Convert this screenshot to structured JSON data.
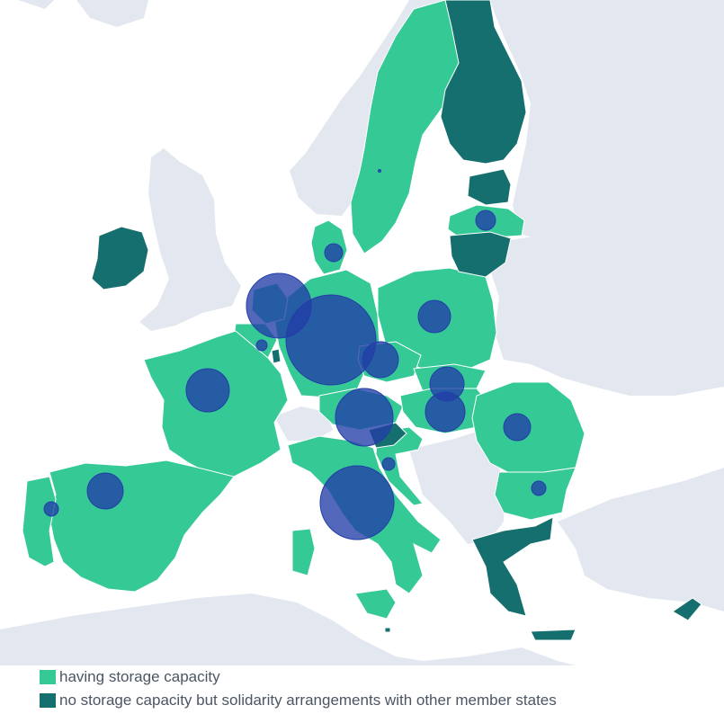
{
  "colors": {
    "sea": "#ffffff",
    "non_eu_land": "#e3e7ef",
    "has_storage": "#35c995",
    "no_storage_solidarity": "#166f6f",
    "bubble": "#233ea8"
  },
  "legend": {
    "items": [
      {
        "label": "having storage capacity",
        "color": "#35c995"
      },
      {
        "label": "no storage capacity but solidarity arrangements with other member states",
        "color": "#166f6f"
      }
    ]
  },
  "map_data": {
    "has_storage": [
      "Sweden",
      "Denmark",
      "Latvia",
      "Germany",
      "Poland",
      "Netherlands",
      "Belgium",
      "France",
      "Spain",
      "Portugal",
      "Italy",
      "Austria",
      "Czechia",
      "Slovakia",
      "Hungary",
      "Croatia",
      "Romania",
      "Bulgaria"
    ],
    "no_storage_solidarity": [
      "Finland",
      "Estonia",
      "Lithuania",
      "Ireland",
      "Luxembourg",
      "Slovenia",
      "Greece",
      "Cyprus",
      "Malta"
    ],
    "storage_bubbles": [
      {
        "country": "Germany",
        "size": "largest"
      },
      {
        "country": "Italy",
        "size": "very large"
      },
      {
        "country": "Netherlands",
        "size": "large"
      },
      {
        "country": "Austria",
        "size": "large"
      },
      {
        "country": "France",
        "size": "medium"
      },
      {
        "country": "Spain",
        "size": "medium"
      },
      {
        "country": "Hungary",
        "size": "medium"
      },
      {
        "country": "Czechia",
        "size": "medium"
      },
      {
        "country": "Poland",
        "size": "medium"
      },
      {
        "country": "Slovakia",
        "size": "medium"
      },
      {
        "country": "Romania",
        "size": "small"
      },
      {
        "country": "Denmark",
        "size": "small"
      },
      {
        "country": "Latvia",
        "size": "small"
      },
      {
        "country": "Bulgaria",
        "size": "small"
      },
      {
        "country": "Croatia",
        "size": "small"
      },
      {
        "country": "Belgium",
        "size": "small"
      },
      {
        "country": "Portugal",
        "size": "small"
      },
      {
        "country": "Sweden",
        "size": "tiny"
      }
    ]
  }
}
